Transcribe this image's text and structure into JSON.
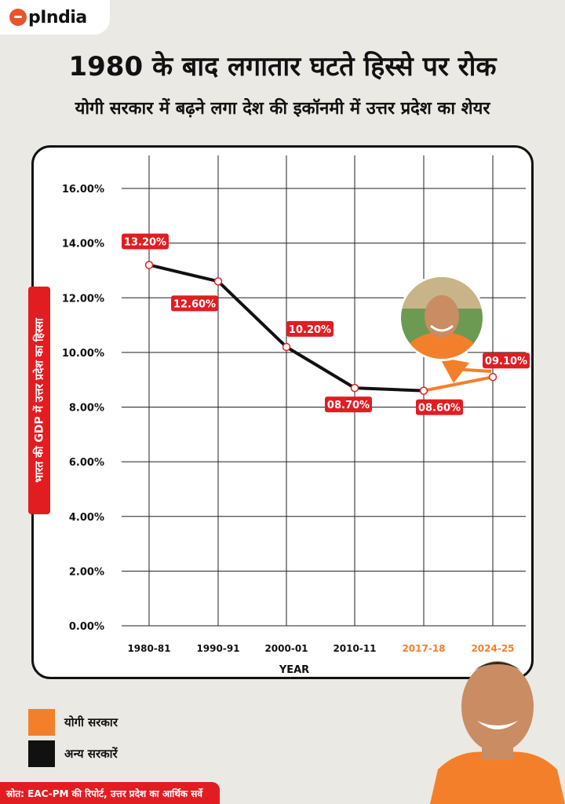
{
  "brand": {
    "logo_text": "pIndia",
    "accent_color": "#e8542b"
  },
  "headline": {
    "title": "1980 के बाद लगातार घटते हिस्से पर रोक",
    "subtitle": "योगी सरकार में बढ़ने लगा देश की इकॉनमी में उत्तर प्रदेश का शेयर"
  },
  "chart_data": {
    "type": "line",
    "categories": [
      "1980-81",
      "1990-91",
      "2000-01",
      "2010-11",
      "2017-18",
      "2024-25"
    ],
    "category_colors": [
      "#111111",
      "#111111",
      "#111111",
      "#111111",
      "#f47f2a",
      "#f47f2a"
    ],
    "values": [
      13.2,
      12.6,
      10.2,
      8.7,
      8.6,
      9.1
    ],
    "data_labels": [
      "13.20%",
      "12.60%",
      "10.20%",
      "08.70%",
      "08.60%",
      "09.10%"
    ],
    "segment_colors": [
      "#111111",
      "#111111",
      "#111111",
      "#111111",
      "#f47f2a"
    ],
    "ylim": [
      0,
      16
    ],
    "yticks": [
      0,
      2,
      4,
      6,
      8,
      10,
      12,
      14,
      16
    ],
    "ytick_labels": [
      "0.00%",
      "2.00%",
      "4.00%",
      "6.00%",
      "8.00%",
      "10.00%",
      "12.00%",
      "14.00%",
      "16.00%"
    ],
    "xlabel": "YEAR",
    "ylabel": "भारत की GDP में उत्तर प्रदेश का हिस्सा",
    "grid": true,
    "label_color": "#e11d22",
    "legend_position": "bottom-left"
  },
  "legend": [
    {
      "label": "योगी सरकार",
      "color": "#f47f2a"
    },
    {
      "label": "अन्य सरकारें",
      "color": "#111111"
    }
  ],
  "source": "स्रोत: EAC-PM की रिपोर्ट, उत्तर प्रदेश का आर्थिक सर्वे"
}
